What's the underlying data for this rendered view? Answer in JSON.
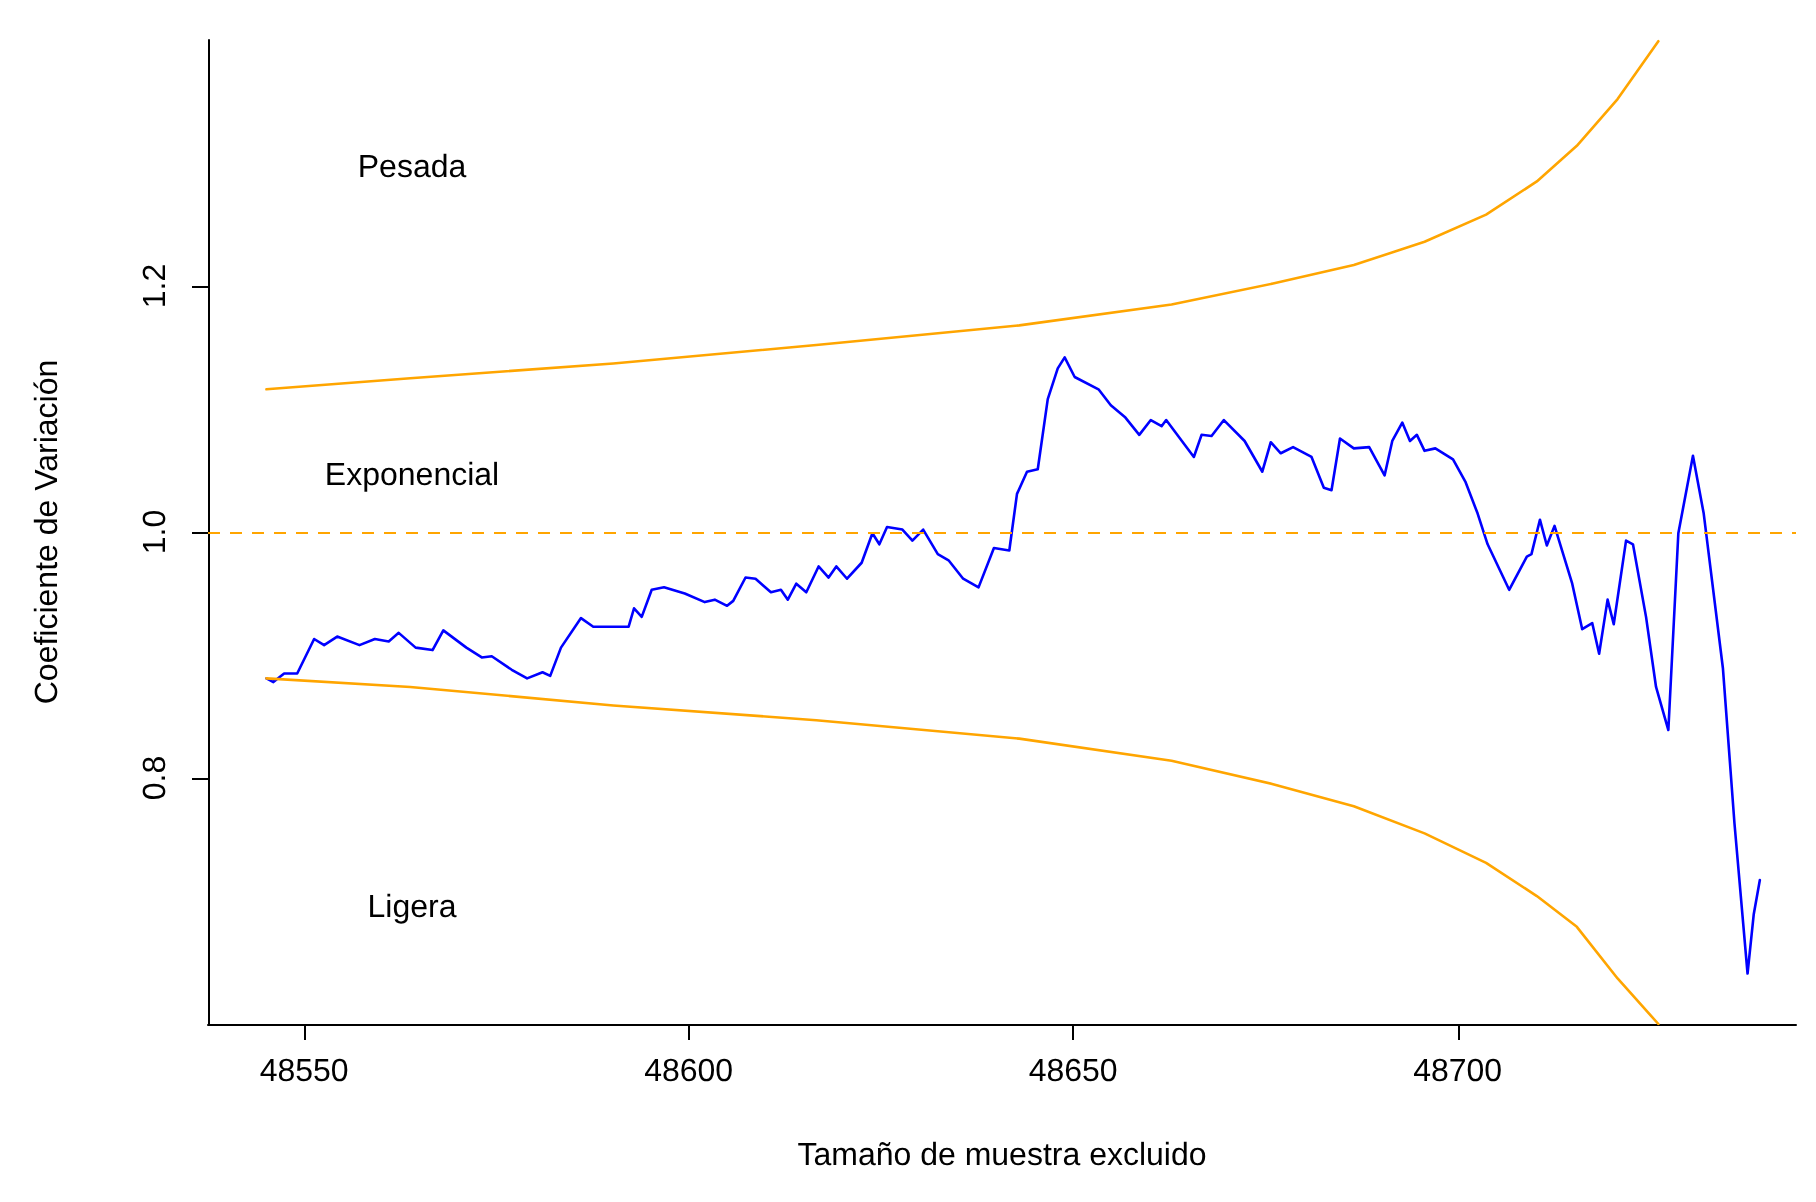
{
  "chart_data": {
    "type": "line",
    "xlabel": "Tamaño de muestra excluido",
    "ylabel": "Coeficiente de Variación",
    "xlim": [
      48537.5,
      48744
    ],
    "ylim": [
      0.6,
      1.4
    ],
    "xticks": [
      48550,
      48600,
      48650,
      48700
    ],
    "yticks": [
      {
        "value": 0.8,
        "label": "0.8"
      },
      {
        "value": 1,
        "label": "1.0"
      },
      {
        "value": 1.2,
        "label": "1.2"
      }
    ],
    "grid": false,
    "marker": "none",
    "line_style": "solid",
    "series": [
      {
        "color": "#0000ff",
        "x": [
          48545.1,
          48546.0,
          48547.4,
          48549.1,
          48551.3,
          48552.6,
          48554.3,
          48557.2,
          48559.2,
          48561.0,
          48562.3,
          48564.5,
          48566.7,
          48568.1,
          48571.1,
          48573.1,
          48574.4,
          48577.0,
          48579.0,
          48581.0,
          48582.0,
          48583.4,
          48586.0,
          48587.6,
          48590.2,
          48592.2,
          48592.9,
          48593.9,
          48595.2,
          48596.8,
          48599.5,
          48602.1,
          48603.4,
          48605.0,
          48605.8,
          48607.4,
          48608.7,
          48610.7,
          48612.0,
          48612.9,
          48614.0,
          48615.3,
          48616.9,
          48618.2,
          48619.2,
          48620.6,
          48622.5,
          48623.9,
          48624.8,
          48625.8,
          48627.8,
          48629.1,
          48630.5,
          48632.4,
          48633.8,
          48635.7,
          48637.7,
          48639.7,
          48641.7,
          48642.7,
          48644.0,
          48645.4,
          48646.7,
          48648.0,
          48648.9,
          48650.2,
          48653.3,
          48654.9,
          48656.8,
          48658.6,
          48660.1,
          48661.5,
          48662.1,
          48665.7,
          48666.7,
          48668.0,
          48669.6,
          48672.3,
          48674.6,
          48675.7,
          48677.0,
          48678.6,
          48681.0,
          48682.6,
          48683.6,
          48684.7,
          48686.5,
          48688.5,
          48690.5,
          48691.5,
          48692.8,
          48693.8,
          48694.7,
          48695.7,
          48697.1,
          48699.4,
          48701.0,
          48702.6,
          48703.9,
          48706.7,
          48709.0,
          48709.6,
          48710.7,
          48711.6,
          48712.6,
          48714.9,
          48716.2,
          48717.5,
          48718.4,
          48719.5,
          48720.3,
          48721.9,
          48722.8,
          48724.5,
          48725.8,
          48727.4,
          48728.7,
          48730.6,
          48732.0,
          48734.5,
          48736.0,
          48737.7,
          48738.5,
          48739.3
        ],
        "values": [
          0.881,
          0.878,
          0.885,
          0.885,
          0.913,
          0.908,
          0.915,
          0.908,
          0.913,
          0.911,
          0.918,
          0.906,
          0.904,
          0.92,
          0.906,
          0.898,
          0.899,
          0.888,
          0.881,
          0.886,
          0.883,
          0.906,
          0.93,
          0.923,
          0.923,
          0.923,
          0.938,
          0.931,
          0.953,
          0.955,
          0.95,
          0.943,
          0.945,
          0.94,
          0.944,
          0.963,
          0.962,
          0.951,
          0.953,
          0.945,
          0.958,
          0.951,
          0.972,
          0.963,
          0.972,
          0.962,
          0.975,
          0.999,
          0.99,
          1.004,
          1.002,
          0.993,
          1.002,
          0.982,
          0.977,
          0.962,
          0.955,
          0.987,
          0.985,
          1.031,
          1.049,
          1.051,
          1.108,
          1.133,
          1.142,
          1.126,
          1.116,
          1.103,
          1.093,
          1.079,
          1.091,
          1.086,
          1.091,
          1.061,
          1.079,
          1.078,
          1.091,
          1.074,
          1.049,
          1.073,
          1.064,
          1.069,
          1.061,
          1.036,
          1.034,
          1.076,
          1.068,
          1.069,
          1.046,
          1.074,
          1.089,
          1.074,
          1.079,
          1.066,
          1.068,
          1.059,
          1.041,
          1.015,
          0.99,
          0.953,
          0.98,
          0.982,
          1.01,
          0.989,
          1.005,
          0.958,
          0.921,
          0.926,
          0.901,
          0.945,
          0.925,
          0.993,
          0.99,
          0.931,
          0.874,
          0.839,
          0.999,
          1.062,
          1.015,
          0.889,
          0.763,
          0.641,
          0.689,
          0.717
        ]
      },
      {
        "color": "#ffa500",
        "x": [
          48545.1,
          48563.8,
          48590.2,
          48616.6,
          48643.0,
          48662.8,
          48676.0,
          48686.5,
          48695.7,
          48703.7,
          48710.3,
          48715.5,
          48720.8,
          48726.1
        ],
        "values": [
          1.116,
          1.125,
          1.137,
          1.152,
          1.168,
          1.185,
          1.202,
          1.217,
          1.236,
          1.258,
          1.285,
          1.314,
          1.352,
          1.399
        ]
      },
      {
        "color": "#ffa500",
        "x": [
          48545.1,
          48563.8,
          48590.2,
          48616.6,
          48643.0,
          48662.8,
          48676.0,
          48686.5,
          48695.7,
          48703.7,
          48710.3,
          48715.5,
          48720.8,
          48726.1
        ],
        "values": [
          0.881,
          0.874,
          0.859,
          0.847,
          0.832,
          0.814,
          0.795,
          0.777,
          0.755,
          0.731,
          0.704,
          0.679,
          0.637,
          0.6
        ]
      }
    ],
    "ref_lines": [
      {
        "axis": "y",
        "value": 1,
        "color": "#ffa500",
        "line_style": "dashed"
      }
    ],
    "annotations": [
      "Pesada",
      "Exponencial",
      "Ligera"
    ]
  }
}
